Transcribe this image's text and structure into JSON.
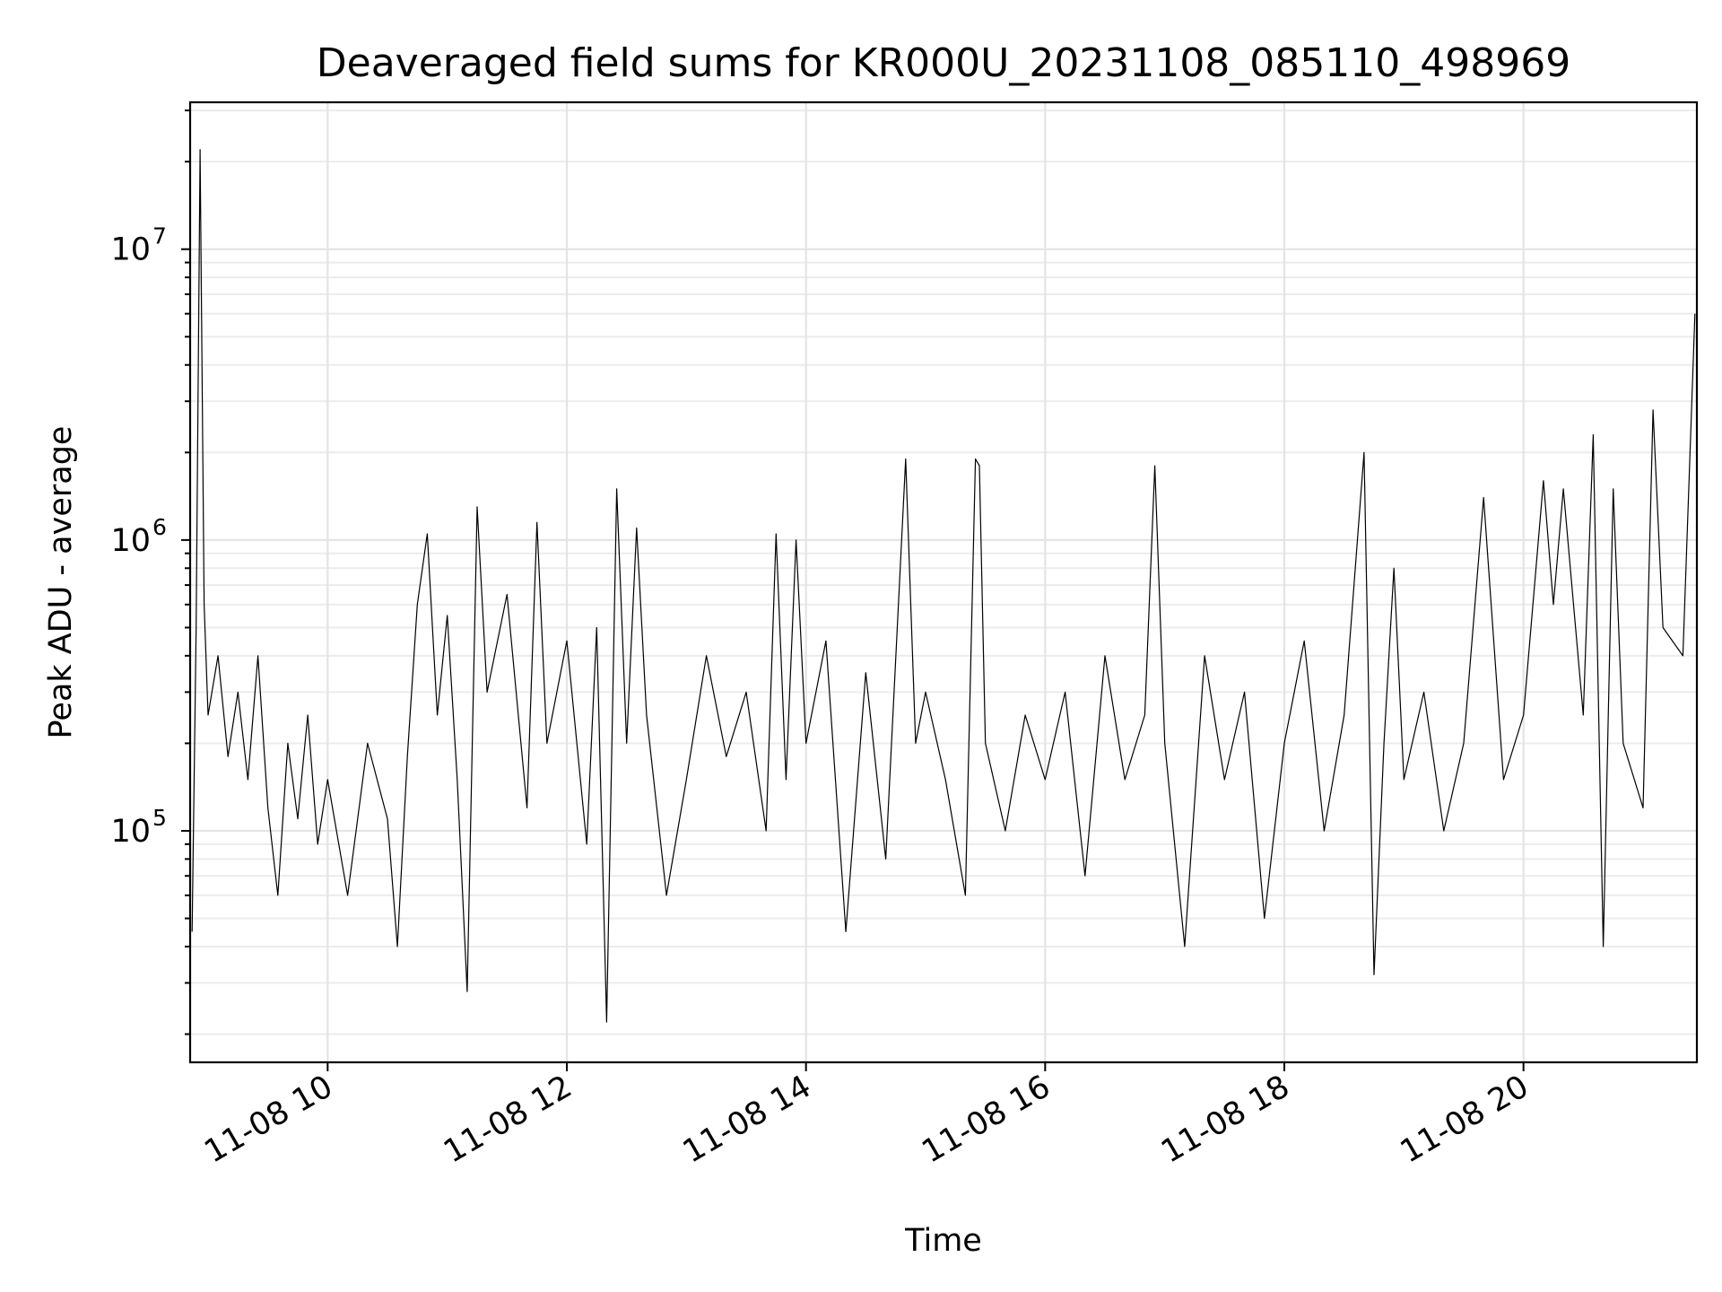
{
  "chart_data": {
    "type": "line",
    "title": "Deaveraged field sums for KR000U_20231108_085110_498969",
    "xlabel": "Time",
    "ylabel": "Peak ADU - average",
    "yscale": "log",
    "ylim": [
      16000,
      32000000
    ],
    "xlim": [
      "2023-11-08 08:51",
      "2023-11-08 21:27"
    ],
    "grid": true,
    "grid_minor": true,
    "x_ticks": [
      {
        "t": "2023-11-08 10:00",
        "label": "11-08 10"
      },
      {
        "t": "2023-11-08 12:00",
        "label": "11-08 12"
      },
      {
        "t": "2023-11-08 14:00",
        "label": "11-08 14"
      },
      {
        "t": "2023-11-08 16:00",
        "label": "11-08 16"
      },
      {
        "t": "2023-11-08 18:00",
        "label": "11-08 18"
      },
      {
        "t": "2023-11-08 20:00",
        "label": "11-08 20"
      }
    ],
    "y_ticks": [
      {
        "value": 100000,
        "base": "10",
        "exp": "5"
      },
      {
        "value": 1000000,
        "base": "10",
        "exp": "6"
      },
      {
        "value": 10000000,
        "base": "10",
        "exp": "7"
      }
    ],
    "series": [
      {
        "color": "#000000",
        "points": [
          [
            "2023-11-08 08:52",
            45000
          ],
          [
            "2023-11-08 08:54",
            500000
          ],
          [
            "2023-11-08 08:56",
            22000000
          ],
          [
            "2023-11-08 08:58",
            600000
          ],
          [
            "2023-11-08 09:00",
            250000
          ],
          [
            "2023-11-08 09:05",
            400000
          ],
          [
            "2023-11-08 09:10",
            180000
          ],
          [
            "2023-11-08 09:15",
            300000
          ],
          [
            "2023-11-08 09:20",
            150000
          ],
          [
            "2023-11-08 09:25",
            400000
          ],
          [
            "2023-11-08 09:30",
            120000
          ],
          [
            "2023-11-08 09:35",
            60000
          ],
          [
            "2023-11-08 09:40",
            200000
          ],
          [
            "2023-11-08 09:45",
            110000
          ],
          [
            "2023-11-08 09:50",
            250000
          ],
          [
            "2023-11-08 09:55",
            90000
          ],
          [
            "2023-11-08 10:00",
            150000
          ],
          [
            "2023-11-08 10:10",
            60000
          ],
          [
            "2023-11-08 10:20",
            200000
          ],
          [
            "2023-11-08 10:30",
            110000
          ],
          [
            "2023-11-08 10:35",
            40000
          ],
          [
            "2023-11-08 10:40",
            180000
          ],
          [
            "2023-11-08 10:45",
            600000
          ],
          [
            "2023-11-08 10:50",
            1050000
          ],
          [
            "2023-11-08 10:55",
            250000
          ],
          [
            "2023-11-08 11:00",
            550000
          ],
          [
            "2023-11-08 11:05",
            150000
          ],
          [
            "2023-11-08 11:10",
            28000
          ],
          [
            "2023-11-08 11:15",
            1300000
          ],
          [
            "2023-11-08 11:20",
            300000
          ],
          [
            "2023-11-08 11:30",
            650000
          ],
          [
            "2023-11-08 11:40",
            120000
          ],
          [
            "2023-11-08 11:45",
            1150000
          ],
          [
            "2023-11-08 11:50",
            200000
          ],
          [
            "2023-11-08 12:00",
            450000
          ],
          [
            "2023-11-08 12:10",
            90000
          ],
          [
            "2023-11-08 12:15",
            500000
          ],
          [
            "2023-11-08 12:20",
            22000
          ],
          [
            "2023-11-08 12:25",
            1500000
          ],
          [
            "2023-11-08 12:30",
            200000
          ],
          [
            "2023-11-08 12:35",
            1100000
          ],
          [
            "2023-11-08 12:40",
            250000
          ],
          [
            "2023-11-08 12:50",
            60000
          ],
          [
            "2023-11-08 13:00",
            150000
          ],
          [
            "2023-11-08 13:10",
            400000
          ],
          [
            "2023-11-08 13:20",
            180000
          ],
          [
            "2023-11-08 13:30",
            300000
          ],
          [
            "2023-11-08 13:40",
            100000
          ],
          [
            "2023-11-08 13:45",
            1050000
          ],
          [
            "2023-11-08 13:50",
            150000
          ],
          [
            "2023-11-08 13:55",
            1000000
          ],
          [
            "2023-11-08 14:00",
            200000
          ],
          [
            "2023-11-08 14:10",
            450000
          ],
          [
            "2023-11-08 14:20",
            45000
          ],
          [
            "2023-11-08 14:30",
            350000
          ],
          [
            "2023-11-08 14:40",
            80000
          ],
          [
            "2023-11-08 14:50",
            1900000
          ],
          [
            "2023-11-08 14:55",
            200000
          ],
          [
            "2023-11-08 15:00",
            300000
          ],
          [
            "2023-11-08 15:10",
            150000
          ],
          [
            "2023-11-08 15:20",
            60000
          ],
          [
            "2023-11-08 15:25",
            1900000
          ],
          [
            "2023-11-08 15:27",
            1800000
          ],
          [
            "2023-11-08 15:30",
            200000
          ],
          [
            "2023-11-08 15:40",
            100000
          ],
          [
            "2023-11-08 15:50",
            250000
          ],
          [
            "2023-11-08 16:00",
            150000
          ],
          [
            "2023-11-08 16:10",
            300000
          ],
          [
            "2023-11-08 16:20",
            70000
          ],
          [
            "2023-11-08 16:30",
            400000
          ],
          [
            "2023-11-08 16:40",
            150000
          ],
          [
            "2023-11-08 16:50",
            250000
          ],
          [
            "2023-11-08 16:55",
            1800000
          ],
          [
            "2023-11-08 17:00",
            200000
          ],
          [
            "2023-11-08 17:10",
            40000
          ],
          [
            "2023-11-08 17:20",
            400000
          ],
          [
            "2023-11-08 17:30",
            150000
          ],
          [
            "2023-11-08 17:40",
            300000
          ],
          [
            "2023-11-08 17:50",
            50000
          ],
          [
            "2023-11-08 18:00",
            200000
          ],
          [
            "2023-11-08 18:10",
            450000
          ],
          [
            "2023-11-08 18:20",
            100000
          ],
          [
            "2023-11-08 18:30",
            250000
          ],
          [
            "2023-11-08 18:40",
            2000000
          ],
          [
            "2023-11-08 18:45",
            32000
          ],
          [
            "2023-11-08 18:50",
            200000
          ],
          [
            "2023-11-08 18:55",
            800000
          ],
          [
            "2023-11-08 19:00",
            150000
          ],
          [
            "2023-11-08 19:10",
            300000
          ],
          [
            "2023-11-08 19:20",
            100000
          ],
          [
            "2023-11-08 19:30",
            200000
          ],
          [
            "2023-11-08 19:40",
            1400000
          ],
          [
            "2023-11-08 19:50",
            150000
          ],
          [
            "2023-11-08 20:00",
            250000
          ],
          [
            "2023-11-08 20:10",
            1600000
          ],
          [
            "2023-11-08 20:15",
            600000
          ],
          [
            "2023-11-08 20:20",
            1500000
          ],
          [
            "2023-11-08 20:30",
            250000
          ],
          [
            "2023-11-08 20:35",
            2300000
          ],
          [
            "2023-11-08 20:40",
            40000
          ],
          [
            "2023-11-08 20:45",
            1500000
          ],
          [
            "2023-11-08 20:50",
            200000
          ],
          [
            "2023-11-08 21:00",
            120000
          ],
          [
            "2023-11-08 21:05",
            2800000
          ],
          [
            "2023-11-08 21:10",
            500000
          ],
          [
            "2023-11-08 21:20",
            400000
          ],
          [
            "2023-11-08 21:26",
            6000000
          ]
        ]
      }
    ]
  }
}
